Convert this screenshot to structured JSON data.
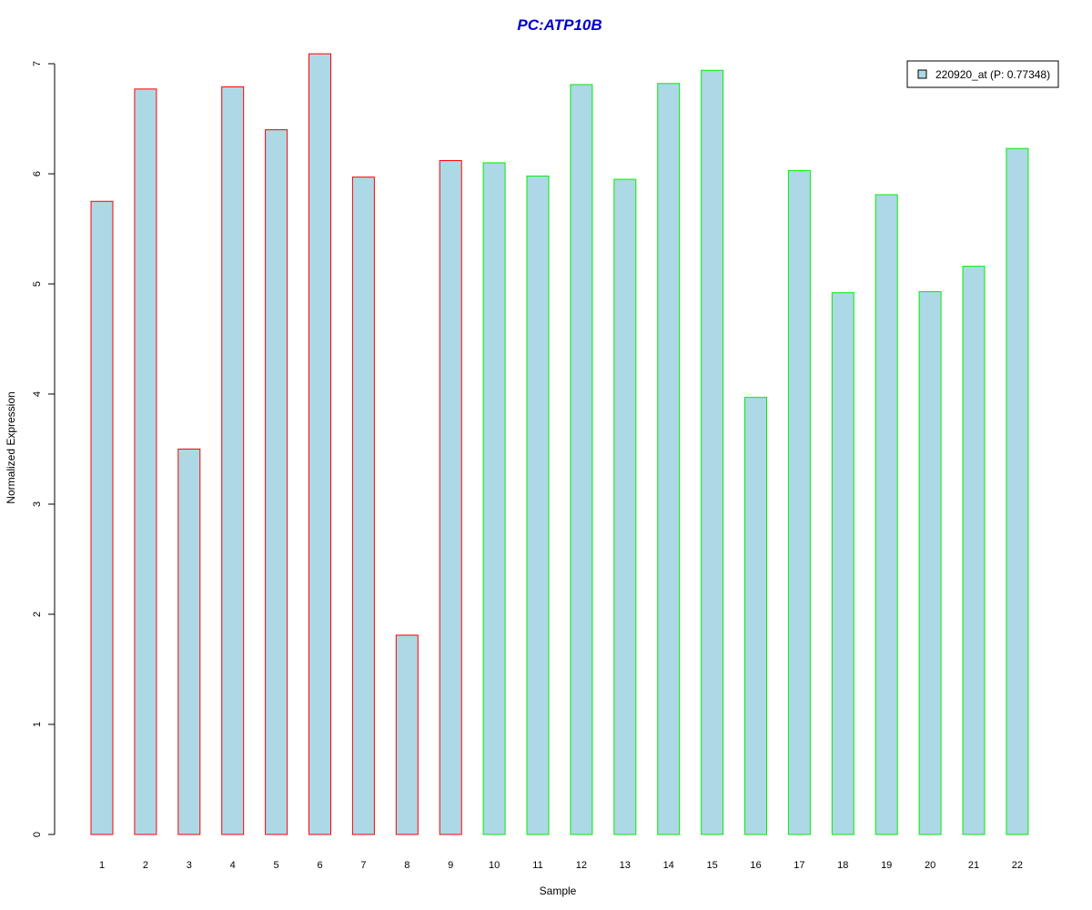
{
  "chart_data": {
    "type": "bar",
    "title": "PC:ATP10B",
    "xlabel": "Sample",
    "ylabel": "Normalized Expression",
    "categories": [
      "1",
      "2",
      "3",
      "4",
      "5",
      "6",
      "7",
      "8",
      "9",
      "10",
      "11",
      "12",
      "13",
      "14",
      "15",
      "16",
      "17",
      "18",
      "19",
      "20",
      "21",
      "22"
    ],
    "values": [
      5.75,
      6.77,
      3.5,
      6.79,
      6.4,
      7.09,
      5.97,
      1.81,
      6.12,
      6.1,
      5.98,
      6.81,
      5.95,
      6.82,
      6.94,
      3.97,
      6.03,
      4.92,
      5.81,
      4.93,
      5.16,
      6.23
    ],
    "group": [
      "red",
      "red",
      "red",
      "red",
      "red",
      "red",
      "red",
      "red",
      "red",
      "green",
      "green",
      "green",
      "green",
      "green",
      "green",
      "green",
      "green",
      "green",
      "green",
      "green",
      "green",
      "green"
    ],
    "ylim": [
      0,
      7
    ],
    "yticks": [
      0,
      1,
      2,
      3,
      4,
      5,
      6,
      7
    ],
    "legend": {
      "entries": [
        "220920_at (P: 0.77348)"
      ],
      "position": "top-right"
    },
    "grid": false
  },
  "colors": {
    "title": "#0000cc",
    "bar_fill": "#add8e6",
    "border_red": "#ff0000",
    "border_green": "#00ee00",
    "axis": "#000000"
  }
}
